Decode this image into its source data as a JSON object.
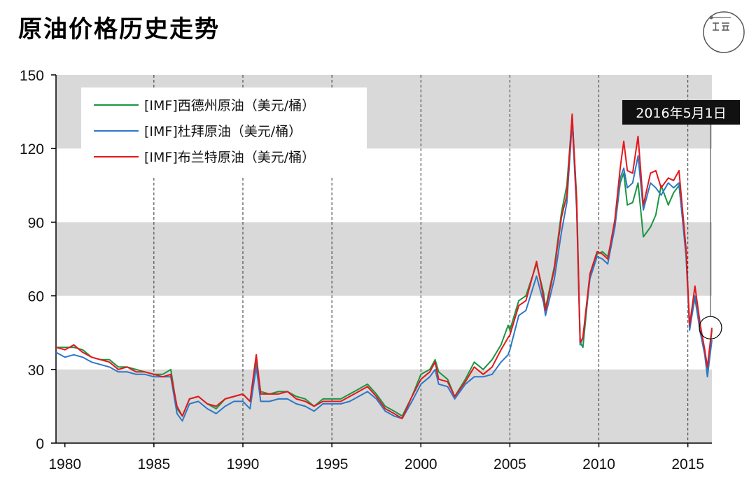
{
  "title": "原油价格历史走势",
  "chart_data": {
    "type": "line",
    "x_range": [
      1979.5,
      2016.35
    ],
    "ylim": [
      0,
      150
    ],
    "y_ticks": [
      "0",
      "30",
      "60",
      "90",
      "120",
      "150"
    ],
    "x_ticks": [
      "1980",
      "1985",
      "1990",
      "1995",
      "2000",
      "2005",
      "2010",
      "2015"
    ],
    "grid": "alternating horizontal bands every 30; dashed vertical lines every 5 years",
    "legend_position": "top-left",
    "callout": "2016年5月1日",
    "colors": {
      "wti": "#1a9641",
      "dubai": "#2b78c9",
      "brent": "#e8161b"
    },
    "series": [
      {
        "key": "wti",
        "name": "[IMF]西德州原油（美元/桶）",
        "points": [
          [
            1979.5,
            39
          ],
          [
            1980,
            39
          ],
          [
            1980.5,
            39
          ],
          [
            1981,
            38
          ],
          [
            1981.5,
            35
          ],
          [
            1982,
            34
          ],
          [
            1982.5,
            34
          ],
          [
            1983,
            31
          ],
          [
            1983.5,
            31
          ],
          [
            1984,
            30
          ],
          [
            1984.5,
            29
          ],
          [
            1985,
            28
          ],
          [
            1985.5,
            28
          ],
          [
            1985.95,
            30
          ],
          [
            1986.3,
            14
          ],
          [
            1986.6,
            11
          ],
          [
            1987,
            18
          ],
          [
            1987.5,
            19
          ],
          [
            1988,
            16
          ],
          [
            1988.5,
            14
          ],
          [
            1989,
            18
          ],
          [
            1989.5,
            19
          ],
          [
            1990,
            20
          ],
          [
            1990.4,
            17
          ],
          [
            1990.75,
            33
          ],
          [
            1991,
            21
          ],
          [
            1991.5,
            20
          ],
          [
            1992,
            21
          ],
          [
            1992.5,
            21
          ],
          [
            1993,
            19
          ],
          [
            1993.5,
            18
          ],
          [
            1994,
            15
          ],
          [
            1994.5,
            18
          ],
          [
            1995,
            18
          ],
          [
            1995.5,
            18
          ],
          [
            1996,
            20
          ],
          [
            1996.5,
            22
          ],
          [
            1997,
            24
          ],
          [
            1997.5,
            20
          ],
          [
            1998,
            15
          ],
          [
            1998.5,
            13
          ],
          [
            1998.95,
            11
          ],
          [
            1999.5,
            19
          ],
          [
            2000,
            28
          ],
          [
            2000.5,
            30
          ],
          [
            2000.8,
            34
          ],
          [
            2001,
            29
          ],
          [
            2001.5,
            26
          ],
          [
            2001.9,
            19
          ],
          [
            2002.5,
            26
          ],
          [
            2003,
            33
          ],
          [
            2003.5,
            30
          ],
          [
            2004,
            34
          ],
          [
            2004.5,
            40
          ],
          [
            2004.9,
            48
          ],
          [
            2005,
            46
          ],
          [
            2005.5,
            58
          ],
          [
            2005.9,
            60
          ],
          [
            2006.5,
            73
          ],
          [
            2006.9,
            61
          ],
          [
            2007,
            55
          ],
          [
            2007.5,
            72
          ],
          [
            2007.9,
            94
          ],
          [
            2008.2,
            105
          ],
          [
            2008.5,
            133
          ],
          [
            2008.75,
            100
          ],
          [
            2008.95,
            41
          ],
          [
            2009.1,
            39
          ],
          [
            2009.5,
            68
          ],
          [
            2009.9,
            77
          ],
          [
            2010.2,
            78
          ],
          [
            2010.5,
            76
          ],
          [
            2010.9,
            88
          ],
          [
            2011.2,
            106
          ],
          [
            2011.4,
            110
          ],
          [
            2011.6,
            97
          ],
          [
            2011.9,
            98
          ],
          [
            2012.2,
            106
          ],
          [
            2012.5,
            84
          ],
          [
            2012.9,
            88
          ],
          [
            2013.2,
            93
          ],
          [
            2013.5,
            105
          ],
          [
            2013.9,
            97
          ],
          [
            2014.2,
            102
          ],
          [
            2014.5,
            105
          ],
          [
            2014.9,
            78
          ],
          [
            2015.1,
            47
          ],
          [
            2015.4,
            59
          ],
          [
            2015.7,
            45
          ],
          [
            2015.95,
            37
          ],
          [
            2016.1,
            30
          ],
          [
            2016.35,
            46
          ]
        ]
      },
      {
        "key": "dubai",
        "name": "[IMF]杜拜原油（美元/桶）",
        "points": [
          [
            1979.5,
            37
          ],
          [
            1980,
            35
          ],
          [
            1980.5,
            36
          ],
          [
            1981,
            35
          ],
          [
            1981.5,
            33
          ],
          [
            1982,
            32
          ],
          [
            1982.5,
            31
          ],
          [
            1983,
            29
          ],
          [
            1983.5,
            29
          ],
          [
            1984,
            28
          ],
          [
            1984.5,
            28
          ],
          [
            1985,
            27
          ],
          [
            1985.5,
            27
          ],
          [
            1985.95,
            27
          ],
          [
            1986.3,
            12
          ],
          [
            1986.6,
            9
          ],
          [
            1987,
            16
          ],
          [
            1987.5,
            17
          ],
          [
            1988,
            14
          ],
          [
            1988.5,
            12
          ],
          [
            1989,
            15
          ],
          [
            1989.5,
            17
          ],
          [
            1990,
            17
          ],
          [
            1990.4,
            14
          ],
          [
            1990.75,
            31
          ],
          [
            1991,
            17
          ],
          [
            1991.5,
            17
          ],
          [
            1992,
            18
          ],
          [
            1992.5,
            18
          ],
          [
            1993,
            16
          ],
          [
            1993.5,
            15
          ],
          [
            1994,
            13
          ],
          [
            1994.5,
            16
          ],
          [
            1995,
            16
          ],
          [
            1995.5,
            16
          ],
          [
            1996,
            17
          ],
          [
            1996.5,
            19
          ],
          [
            1997,
            21
          ],
          [
            1997.5,
            18
          ],
          [
            1998,
            13
          ],
          [
            1998.5,
            11
          ],
          [
            1998.95,
            10
          ],
          [
            1999.5,
            17
          ],
          [
            2000,
            24
          ],
          [
            2000.5,
            27
          ],
          [
            2000.8,
            30
          ],
          [
            2001,
            24
          ],
          [
            2001.5,
            23
          ],
          [
            2001.9,
            18
          ],
          [
            2002.5,
            24
          ],
          [
            2003,
            27
          ],
          [
            2003.5,
            27
          ],
          [
            2004,
            28
          ],
          [
            2004.5,
            33
          ],
          [
            2004.9,
            36
          ],
          [
            2005,
            38
          ],
          [
            2005.5,
            52
          ],
          [
            2005.9,
            54
          ],
          [
            2006.5,
            68
          ],
          [
            2006.9,
            57
          ],
          [
            2007,
            52
          ],
          [
            2007.5,
            67
          ],
          [
            2007.9,
            86
          ],
          [
            2008.2,
            98
          ],
          [
            2008.5,
            131
          ],
          [
            2008.75,
            95
          ],
          [
            2008.95,
            40
          ],
          [
            2009.1,
            43
          ],
          [
            2009.5,
            67
          ],
          [
            2009.9,
            76
          ],
          [
            2010.2,
            75
          ],
          [
            2010.5,
            73
          ],
          [
            2010.9,
            88
          ],
          [
            2011.2,
            108
          ],
          [
            2011.4,
            112
          ],
          [
            2011.6,
            104
          ],
          [
            2011.9,
            106
          ],
          [
            2012.2,
            117
          ],
          [
            2012.5,
            95
          ],
          [
            2012.9,
            106
          ],
          [
            2013.2,
            104
          ],
          [
            2013.5,
            101
          ],
          [
            2013.9,
            106
          ],
          [
            2014.2,
            104
          ],
          [
            2014.5,
            106
          ],
          [
            2014.9,
            76
          ],
          [
            2015.1,
            46
          ],
          [
            2015.4,
            60
          ],
          [
            2015.7,
            45
          ],
          [
            2015.95,
            36
          ],
          [
            2016.1,
            27
          ],
          [
            2016.35,
            42
          ]
        ]
      },
      {
        "key": "brent",
        "name": "[IMF]布兰特原油（美元/桶）",
        "points": [
          [
            1979.5,
            39
          ],
          [
            1980,
            38
          ],
          [
            1980.5,
            40
          ],
          [
            1981,
            37
          ],
          [
            1981.5,
            35
          ],
          [
            1982,
            34
          ],
          [
            1982.5,
            33
          ],
          [
            1983,
            30
          ],
          [
            1983.5,
            31
          ],
          [
            1984,
            29
          ],
          [
            1984.5,
            29
          ],
          [
            1985,
            28
          ],
          [
            1985.5,
            27
          ],
          [
            1985.95,
            28
          ],
          [
            1986.3,
            15
          ],
          [
            1986.6,
            11
          ],
          [
            1987,
            18
          ],
          [
            1987.5,
            19
          ],
          [
            1988,
            16
          ],
          [
            1988.5,
            15
          ],
          [
            1989,
            18
          ],
          [
            1989.5,
            19
          ],
          [
            1990,
            20
          ],
          [
            1990.4,
            17
          ],
          [
            1990.75,
            36
          ],
          [
            1991,
            20
          ],
          [
            1991.5,
            20
          ],
          [
            1992,
            20
          ],
          [
            1992.5,
            21
          ],
          [
            1993,
            18
          ],
          [
            1993.5,
            17
          ],
          [
            1994,
            15
          ],
          [
            1994.5,
            17
          ],
          [
            1995,
            17
          ],
          [
            1995.5,
            17
          ],
          [
            1996,
            19
          ],
          [
            1996.5,
            21
          ],
          [
            1997,
            23
          ],
          [
            1997.5,
            19
          ],
          [
            1998,
            14
          ],
          [
            1998.5,
            12
          ],
          [
            1998.95,
            10
          ],
          [
            1999.5,
            19
          ],
          [
            2000,
            26
          ],
          [
            2000.5,
            29
          ],
          [
            2000.8,
            33
          ],
          [
            2001,
            26
          ],
          [
            2001.5,
            25
          ],
          [
            2001.9,
            19
          ],
          [
            2002.5,
            25
          ],
          [
            2003,
            31
          ],
          [
            2003.5,
            28
          ],
          [
            2004,
            31
          ],
          [
            2004.5,
            38
          ],
          [
            2004.9,
            43
          ],
          [
            2005,
            44
          ],
          [
            2005.5,
            56
          ],
          [
            2005.9,
            58
          ],
          [
            2006.5,
            74
          ],
          [
            2006.9,
            59
          ],
          [
            2007,
            54
          ],
          [
            2007.5,
            71
          ],
          [
            2007.9,
            92
          ],
          [
            2008.2,
            101
          ],
          [
            2008.5,
            134
          ],
          [
            2008.75,
            98
          ],
          [
            2008.95,
            41
          ],
          [
            2009.1,
            43
          ],
          [
            2009.5,
            69
          ],
          [
            2009.9,
            78
          ],
          [
            2010.2,
            77
          ],
          [
            2010.5,
            75
          ],
          [
            2010.9,
            91
          ],
          [
            2011.2,
            112
          ],
          [
            2011.4,
            123
          ],
          [
            2011.6,
            111
          ],
          [
            2011.9,
            110
          ],
          [
            2012.2,
            125
          ],
          [
            2012.5,
            97
          ],
          [
            2012.9,
            110
          ],
          [
            2013.2,
            111
          ],
          [
            2013.5,
            104
          ],
          [
            2013.9,
            108
          ],
          [
            2014.2,
            107
          ],
          [
            2014.5,
            111
          ],
          [
            2014.9,
            79
          ],
          [
            2015.1,
            48
          ],
          [
            2015.4,
            64
          ],
          [
            2015.7,
            48
          ],
          [
            2015.95,
            38
          ],
          [
            2016.1,
            31
          ],
          [
            2016.35,
            47
          ]
        ]
      }
    ]
  }
}
